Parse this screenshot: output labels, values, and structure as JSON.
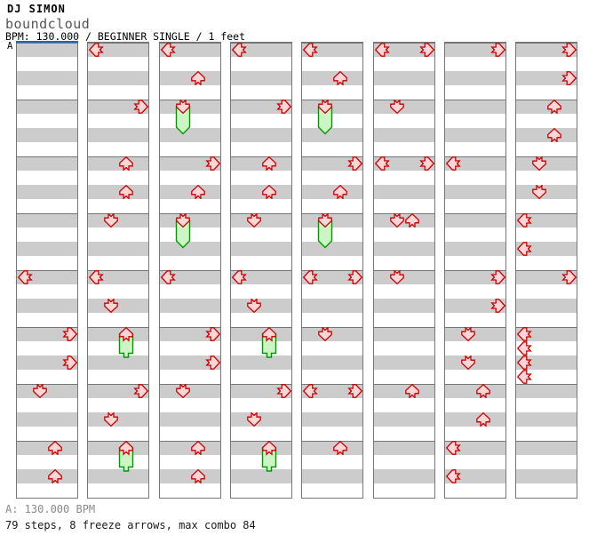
{
  "header": {
    "artist": "DJ SIMON",
    "title": "boundcloud",
    "meta": "BPM: 130.000 / BEGINNER SINGLE / 1 feet"
  },
  "section": {
    "label": "A"
  },
  "footer": {
    "tempo": "A: 130.000 BPM",
    "stats": "79 steps, 8 freeze arrows, max combo 84"
  },
  "colors": {
    "stripe": "#cccccc",
    "measure_line": "#777777",
    "panel_border": "#777777",
    "section_line": "#2065c5",
    "arrow_stroke": "#cc0000",
    "arrow_fill": "#ffd6d6",
    "freeze_fill": "#ccf5c4",
    "freeze_stroke": "#009900"
  },
  "chart": {
    "lane_order": [
      "left",
      "down",
      "up",
      "right"
    ],
    "panels_count": 8,
    "measures_per_panel": 8,
    "rows_per_measure": 4,
    "freeze_rows": 2,
    "panels": [
      {
        "notes": [
          {
            "row": 16,
            "lane": "left",
            "type": "step"
          },
          {
            "row": 20,
            "lane": "right",
            "type": "step"
          },
          {
            "row": 22,
            "lane": "right",
            "type": "step"
          },
          {
            "row": 24,
            "lane": "down",
            "type": "step"
          },
          {
            "row": 28,
            "lane": "up",
            "type": "step"
          },
          {
            "row": 30,
            "lane": "up",
            "type": "step"
          }
        ]
      },
      {
        "notes": [
          {
            "row": 0,
            "lane": "left",
            "type": "step"
          },
          {
            "row": 4,
            "lane": "right",
            "type": "step"
          },
          {
            "row": 8,
            "lane": "up",
            "type": "step"
          },
          {
            "row": 10,
            "lane": "up",
            "type": "step"
          },
          {
            "row": 12,
            "lane": "down",
            "type": "step"
          },
          {
            "row": 16,
            "lane": "left",
            "type": "step"
          },
          {
            "row": 18,
            "lane": "down",
            "type": "step"
          },
          {
            "row": 20,
            "lane": "up",
            "type": "freeze"
          },
          {
            "row": 24,
            "lane": "right",
            "type": "step"
          },
          {
            "row": 26,
            "lane": "down",
            "type": "step"
          },
          {
            "row": 28,
            "lane": "up",
            "type": "freeze"
          }
        ]
      },
      {
        "notes": [
          {
            "row": 0,
            "lane": "left",
            "type": "step"
          },
          {
            "row": 2,
            "lane": "up",
            "type": "step"
          },
          {
            "row": 4,
            "lane": "down",
            "type": "freeze"
          },
          {
            "row": 8,
            "lane": "right",
            "type": "step"
          },
          {
            "row": 10,
            "lane": "up",
            "type": "step"
          },
          {
            "row": 12,
            "lane": "down",
            "type": "freeze"
          },
          {
            "row": 16,
            "lane": "left",
            "type": "step"
          },
          {
            "row": 20,
            "lane": "right",
            "type": "step"
          },
          {
            "row": 22,
            "lane": "right",
            "type": "step"
          },
          {
            "row": 24,
            "lane": "down",
            "type": "step"
          },
          {
            "row": 28,
            "lane": "up",
            "type": "step"
          },
          {
            "row": 30,
            "lane": "up",
            "type": "step"
          }
        ]
      },
      {
        "notes": [
          {
            "row": 0,
            "lane": "left",
            "type": "step"
          },
          {
            "row": 4,
            "lane": "right",
            "type": "step"
          },
          {
            "row": 8,
            "lane": "up",
            "type": "step"
          },
          {
            "row": 10,
            "lane": "up",
            "type": "step"
          },
          {
            "row": 12,
            "lane": "down",
            "type": "step"
          },
          {
            "row": 16,
            "lane": "left",
            "type": "step"
          },
          {
            "row": 18,
            "lane": "down",
            "type": "step"
          },
          {
            "row": 20,
            "lane": "up",
            "type": "freeze"
          },
          {
            "row": 24,
            "lane": "right",
            "type": "step"
          },
          {
            "row": 26,
            "lane": "down",
            "type": "step"
          },
          {
            "row": 28,
            "lane": "up",
            "type": "freeze"
          }
        ]
      },
      {
        "notes": [
          {
            "row": 0,
            "lane": "left",
            "type": "step"
          },
          {
            "row": 2,
            "lane": "up",
            "type": "step"
          },
          {
            "row": 4,
            "lane": "down",
            "type": "freeze"
          },
          {
            "row": 8,
            "lane": "right",
            "type": "step"
          },
          {
            "row": 10,
            "lane": "up",
            "type": "step"
          },
          {
            "row": 12,
            "lane": "down",
            "type": "freeze"
          },
          {
            "row": 16,
            "lane": "left",
            "type": "step"
          },
          {
            "row": 16,
            "lane": "right",
            "type": "step"
          },
          {
            "row": 20,
            "lane": "down",
            "type": "step"
          },
          {
            "row": 24,
            "lane": "left",
            "type": "step"
          },
          {
            "row": 24,
            "lane": "right",
            "type": "step"
          },
          {
            "row": 28,
            "lane": "up",
            "type": "step"
          }
        ]
      },
      {
        "notes": [
          {
            "row": 0,
            "lane": "left",
            "type": "step"
          },
          {
            "row": 0,
            "lane": "right",
            "type": "step"
          },
          {
            "row": 4,
            "lane": "down",
            "type": "step"
          },
          {
            "row": 8,
            "lane": "left",
            "type": "step"
          },
          {
            "row": 8,
            "lane": "right",
            "type": "step"
          },
          {
            "row": 12,
            "lane": "down",
            "type": "step"
          },
          {
            "row": 12,
            "lane": "up",
            "type": "step"
          },
          {
            "row": 16,
            "lane": "down",
            "type": "step"
          },
          {
            "row": 24,
            "lane": "up",
            "type": "step"
          }
        ]
      },
      {
        "notes": [
          {
            "row": 0,
            "lane": "right",
            "type": "step"
          },
          {
            "row": 8,
            "lane": "left",
            "type": "step"
          },
          {
            "row": 16,
            "lane": "right",
            "type": "step"
          },
          {
            "row": 18,
            "lane": "right",
            "type": "step"
          },
          {
            "row": 20,
            "lane": "down",
            "type": "step"
          },
          {
            "row": 22,
            "lane": "down",
            "type": "step"
          },
          {
            "row": 24,
            "lane": "up",
            "type": "step"
          },
          {
            "row": 26,
            "lane": "up",
            "type": "step"
          },
          {
            "row": 28,
            "lane": "left",
            "type": "step"
          },
          {
            "row": 30,
            "lane": "left",
            "type": "step"
          }
        ]
      },
      {
        "notes": [
          {
            "row": 0,
            "lane": "right",
            "type": "step"
          },
          {
            "row": 2,
            "lane": "right",
            "type": "step"
          },
          {
            "row": 4,
            "lane": "up",
            "type": "step"
          },
          {
            "row": 6,
            "lane": "up",
            "type": "step"
          },
          {
            "row": 8,
            "lane": "down",
            "type": "step"
          },
          {
            "row": 10,
            "lane": "down",
            "type": "step"
          },
          {
            "row": 12,
            "lane": "left",
            "type": "step"
          },
          {
            "row": 14,
            "lane": "left",
            "type": "step"
          },
          {
            "row": 16,
            "lane": "right",
            "type": "step"
          },
          {
            "row": 20,
            "lane": "left",
            "type": "step"
          },
          {
            "row": 21,
            "lane": "left",
            "type": "step"
          },
          {
            "row": 22,
            "lane": "left",
            "type": "step"
          },
          {
            "row": 23,
            "lane": "left",
            "type": "step"
          }
        ]
      }
    ]
  }
}
